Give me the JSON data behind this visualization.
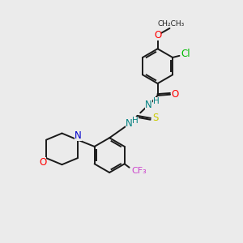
{
  "background_color": "#ebebeb",
  "bond_color": "#1a1a1a",
  "atom_colors": {
    "O": "#ff0000",
    "N_dark": "#008080",
    "N": "#0000cc",
    "S": "#cccc00",
    "Cl": "#00bb00",
    "F": "#cc44cc",
    "C": "#1a1a1a",
    "H": "#008080"
  },
  "lw": 1.4,
  "fontsize": 8.5,
  "ring_r": 0.72
}
